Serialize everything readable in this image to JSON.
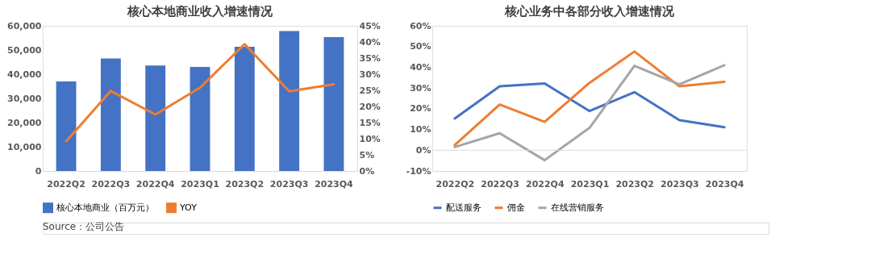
{
  "chart_data": [
    {
      "type": "bar",
      "title": "核心本地商业收入增速情况",
      "categories": [
        "2022Q2",
        "2022Q3",
        "2022Q4",
        "2023Q1",
        "2023Q2",
        "2023Q3",
        "2023Q4"
      ],
      "series": [
        {
          "name": "核心本地商业（百万元）",
          "color": "#4472c4",
          "values": [
            37000,
            46500,
            43600,
            43000,
            51300,
            57800,
            55300
          ]
        },
        {
          "name": "YOY",
          "type": "line",
          "axis": "y2",
          "color": "#ed7d31",
          "values": [
            9.2,
            24.8,
            17.5,
            25.8,
            39.3,
            24.7,
            26.9
          ]
        }
      ],
      "ylim": [
        0,
        60000
      ],
      "yticks": [
        0,
        {
          "value": 10000,
          "label": "10,000"
        },
        {
          "value": 20000,
          "label": "20,000"
        },
        {
          "value": 30000,
          "label": "30,000"
        },
        {
          "value": 40000,
          "label": "40,000"
        },
        {
          "value": 50000,
          "label": "50,000"
        },
        {
          "value": 60000,
          "label": "60,000"
        }
      ],
      "y2lim": [
        0,
        45
      ],
      "y2ticks": [
        {
          "value": 0,
          "label": "0%"
        },
        {
          "value": 5,
          "label": "5%"
        },
        {
          "value": 10,
          "label": "10%"
        },
        {
          "value": 15,
          "label": "15%"
        },
        {
          "value": 20,
          "label": "20%"
        },
        {
          "value": 25,
          "label": "25%"
        },
        {
          "value": 30,
          "label": "30%"
        },
        {
          "value": 35,
          "label": "35%"
        },
        {
          "value": 40,
          "label": "40%"
        },
        {
          "value": 45,
          "label": "45%"
        }
      ],
      "grid": false,
      "legend": "bottom",
      "marker": "none",
      "line_style": "solid",
      "annotations": [
        "Source：公司公告"
      ]
    },
    {
      "type": "line",
      "title": "核心业务中各部分收入增速情况",
      "categories": [
        "2022Q2",
        "2022Q3",
        "2022Q4",
        "2023Q1",
        "2023Q2",
        "2023Q3",
        "2023Q4"
      ],
      "series": [
        {
          "name": "配送服务",
          "color": "#4472c4",
          "values": [
            15.3,
            30.8,
            32.2,
            18.9,
            28.0,
            14.5,
            11.1
          ]
        },
        {
          "name": "佣金",
          "color": "#ed7d31",
          "values": [
            2.5,
            22.0,
            13.7,
            32.5,
            47.6,
            30.8,
            33.0
          ]
        },
        {
          "name": "在线营销服务",
          "color": "#a5a5a5",
          "values": [
            1.5,
            8.2,
            -4.8,
            10.8,
            40.7,
            31.8,
            41.0
          ]
        }
      ],
      "ylim": [
        -10,
        60
      ],
      "yticks": [
        {
          "value": -10,
          "label": "-10%"
        },
        {
          "value": 0,
          "label": "0%"
        },
        {
          "value": 10,
          "label": "10%"
        },
        {
          "value": 20,
          "label": "20%"
        },
        {
          "value": 30,
          "label": "30%"
        },
        {
          "value": 40,
          "label": "40%"
        },
        {
          "value": 50,
          "label": "50%"
        },
        {
          "value": 60,
          "label": "60%"
        }
      ],
      "ref_lines": [
        {
          "axis": "y",
          "value": 0,
          "color": "#d9d9d9"
        }
      ],
      "grid": false,
      "legend": "bottom",
      "marker": "none",
      "line_style": "solid"
    }
  ]
}
